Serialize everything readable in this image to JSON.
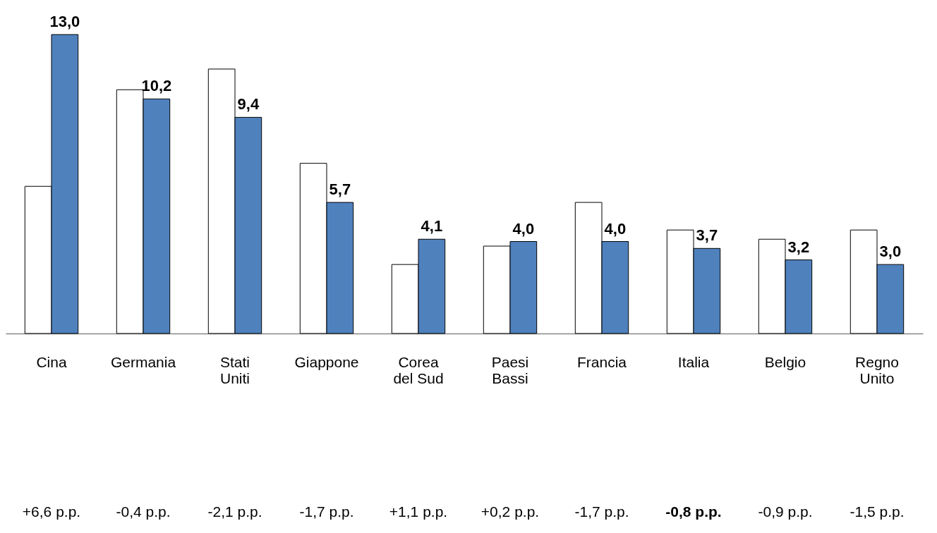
{
  "chart_data": {
    "type": "bar",
    "categories": [
      "Cina",
      "Germania",
      "Stati Uniti",
      "Giappone",
      "Corea del Sud",
      "Paesi Bassi",
      "Francia",
      "Italia",
      "Belgio",
      "Regno Unito"
    ],
    "series": [
      {
        "color": "#ffffff",
        "values": [
          6.4,
          10.6,
          11.5,
          7.4,
          3.0,
          3.8,
          5.7,
          4.5,
          4.1,
          4.5
        ]
      },
      {
        "color": "#4f81bd",
        "values": [
          13.0,
          10.2,
          9.4,
          5.7,
          4.1,
          4.0,
          4.0,
          3.7,
          3.2,
          3.0
        ],
        "value_labels": [
          "13,0",
          "10,2",
          "9,4",
          "5,7",
          "4,1",
          "4,0",
          "4,0",
          "3,7",
          "3,2",
          "3,0"
        ]
      }
    ],
    "annotations": [
      "+6,6 p.p.",
      "-0,4 p.p.",
      "-2,1 p.p.",
      "-1,7 p.p.",
      "+1,1 p.p.",
      "+0,2 p.p.",
      "-1,7 p.p.",
      "-0,8 p.p.",
      "-0,9 p.p.",
      "-1,5 p.p."
    ],
    "grid": false,
    "legend": false
  }
}
